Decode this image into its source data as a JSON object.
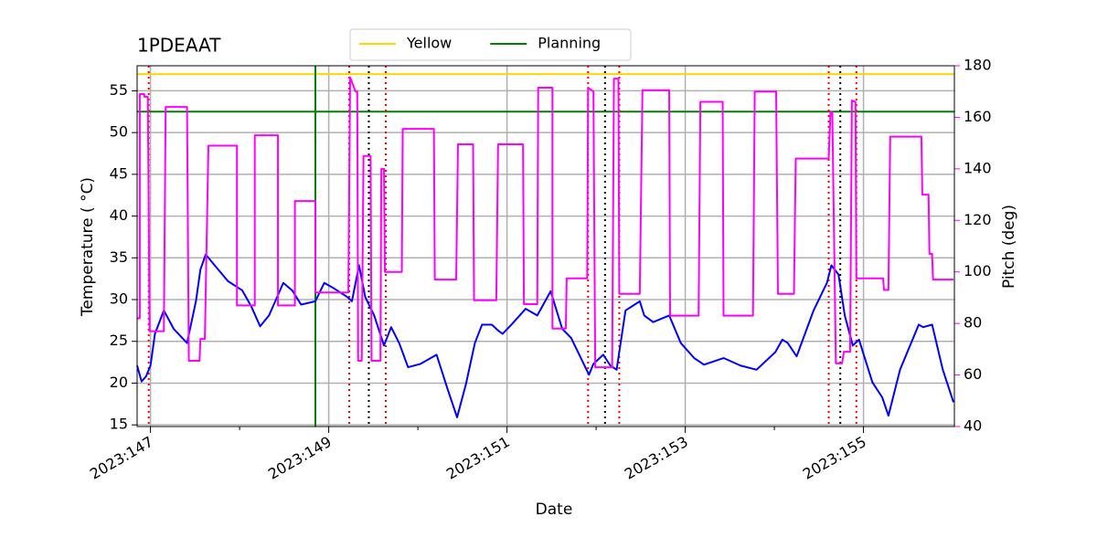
{
  "chart_data": {
    "type": "line",
    "title": "1PDEAAT",
    "xlabel": "Date",
    "ylabel": "Temperature ($^\\circ$C)",
    "y2label": "Pitch (deg)",
    "xlim": [
      146.85,
      156.02
    ],
    "xticks": [
      {
        "value": 147,
        "label": "2023:147"
      },
      {
        "value": 149,
        "label": "2023:149"
      },
      {
        "value": 151,
        "label": "2023:151"
      },
      {
        "value": 153,
        "label": "2023:153"
      },
      {
        "value": 155,
        "label": "2023:155"
      }
    ],
    "xminorticks": [
      148,
      150,
      152,
      154
    ],
    "ylim": [
      14.8,
      58
    ],
    "yticks": [
      15,
      20,
      25,
      30,
      35,
      40,
      45,
      50,
      55
    ],
    "y2lim": [
      40,
      180
    ],
    "y2ticks": [
      40,
      60,
      80,
      100,
      120,
      140,
      160,
      180
    ],
    "y2color": "magenta",
    "grid": true,
    "legend": "top",
    "hlines": [
      {
        "name": "Yellow",
        "color": "gold",
        "y": 57
      },
      {
        "name": "Planning",
        "color": "green",
        "y": 52.5
      }
    ],
    "vlines": [
      {
        "x": 148.85,
        "color": "green",
        "style": "solid"
      },
      {
        "x": 146.98,
        "color": "red",
        "style": "dotted"
      },
      {
        "x": 149.23,
        "color": "red",
        "style": "dotted"
      },
      {
        "x": 149.64,
        "color": "red",
        "style": "dotted"
      },
      {
        "x": 151.91,
        "color": "red",
        "style": "dotted"
      },
      {
        "x": 152.26,
        "color": "red",
        "style": "dotted"
      },
      {
        "x": 154.61,
        "color": "red",
        "style": "dotted"
      },
      {
        "x": 154.92,
        "color": "red",
        "style": "dotted"
      },
      {
        "x": 149.45,
        "color": "black",
        "style": "dotted"
      },
      {
        "x": 152.1,
        "color": "black",
        "style": "dotted"
      },
      {
        "x": 154.74,
        "color": "black",
        "style": "dotted"
      }
    ],
    "series": [
      {
        "color": "blue",
        "x": [
          146.85,
          146.9,
          146.95,
          147.0,
          147.05,
          147.15,
          147.26,
          147.41,
          147.51,
          147.56,
          147.62,
          147.72,
          147.87,
          148.03,
          148.13,
          148.23,
          148.33,
          148.49,
          148.59,
          148.69,
          148.85,
          148.95,
          149.05,
          149.21,
          149.26,
          149.34,
          149.41,
          149.51,
          149.62,
          149.7,
          149.79,
          149.89,
          150.03,
          150.21,
          150.33,
          150.44,
          150.54,
          150.64,
          150.72,
          150.83,
          150.9,
          150.95,
          151.05,
          151.21,
          151.34,
          151.49,
          151.62,
          151.72,
          151.92,
          151.97,
          152.08,
          152.16,
          152.23,
          152.33,
          152.49,
          152.54,
          152.64,
          152.82,
          152.95,
          153.1,
          153.21,
          153.43,
          153.62,
          153.8,
          154.01,
          154.09,
          154.15,
          154.25,
          154.44,
          154.59,
          154.64,
          154.72,
          154.79,
          154.88,
          154.95,
          155.1,
          155.21,
          155.28,
          155.41,
          155.62,
          155.67,
          155.77,
          155.89,
          156.01
        ],
        "values": [
          22.1,
          20.2,
          20.8,
          22.1,
          25.9,
          28.7,
          26.5,
          24.8,
          29.8,
          33.6,
          35.4,
          34.1,
          32.2,
          31.1,
          29.2,
          26.8,
          28.1,
          32.0,
          31.1,
          29.4,
          29.8,
          32.0,
          31.4,
          30.3,
          29.8,
          34.1,
          30.3,
          28.1,
          24.5,
          26.7,
          24.8,
          21.9,
          22.3,
          23.4,
          19.4,
          15.9,
          19.9,
          24.8,
          27.0,
          27.0,
          26.3,
          25.9,
          27.0,
          28.9,
          28.1,
          31.0,
          26.5,
          25.4,
          21.0,
          22.3,
          23.4,
          22.1,
          21.6,
          28.7,
          29.8,
          28.1,
          27.3,
          28.1,
          24.8,
          23.0,
          22.2,
          23.0,
          22.1,
          21.6,
          23.7,
          25.2,
          24.8,
          23.2,
          28.7,
          32.0,
          34.1,
          33.0,
          28.1,
          24.5,
          25.2,
          20.1,
          18.3,
          16.1,
          21.6,
          27.0,
          26.7,
          27.0,
          21.6,
          17.7
        ]
      },
      {
        "color": "magenta",
        "axis": "y2",
        "x": [
          146.85,
          146.88,
          146.88,
          146.93,
          146.93,
          146.97,
          146.99,
          147.15,
          147.17,
          147.41,
          147.43,
          147.55,
          147.56,
          147.61,
          147.65,
          147.97,
          147.97,
          148.17,
          148.17,
          148.43,
          148.43,
          148.62,
          148.62,
          148.85,
          148.85,
          149.22,
          149.24,
          149.3,
          149.32,
          149.33,
          149.37,
          149.39,
          149.47,
          149.48,
          149.58,
          149.59,
          149.62,
          149.63,
          149.82,
          149.83,
          150.18,
          150.19,
          150.43,
          150.45,
          150.62,
          150.63,
          150.88,
          150.9,
          151.18,
          151.19,
          151.34,
          151.35,
          151.51,
          151.51,
          151.66,
          151.67,
          151.9,
          151.91,
          151.97,
          151.99,
          152.18,
          152.2,
          152.25,
          152.26,
          152.49,
          152.52,
          152.82,
          152.83,
          153.15,
          153.17,
          153.42,
          153.43,
          153.76,
          153.78,
          154.02,
          154.04,
          154.22,
          154.24,
          154.61,
          154.63,
          154.65,
          154.69,
          154.76,
          154.78,
          154.85,
          154.87,
          154.91,
          154.92,
          155.22,
          155.23,
          155.28,
          155.3,
          155.65,
          155.66,
          155.73,
          155.74,
          155.77,
          155.78,
          156.01
        ],
        "values": [
          82,
          82,
          169,
          169,
          168,
          168,
          77,
          77,
          164,
          164,
          65.5,
          65.5,
          74,
          74,
          149,
          149,
          87,
          87,
          153,
          153,
          87,
          87,
          127.5,
          127.5,
          92,
          92,
          175.5,
          170,
          170,
          65.5,
          65.5,
          145,
          145,
          65.5,
          65.5,
          140,
          140,
          100,
          100,
          155.5,
          155.5,
          97,
          97,
          149.5,
          149.5,
          89,
          89,
          149.5,
          149.5,
          87.5,
          87.5,
          171.5,
          171.5,
          78,
          78,
          97.5,
          97.5,
          171.5,
          170,
          63,
          63,
          175,
          175,
          91.5,
          91.5,
          170.5,
          170.5,
          83,
          83,
          166,
          166,
          83,
          83,
          170,
          170,
          91.5,
          91.5,
          144,
          144,
          162,
          162,
          64.5,
          64.5,
          69,
          69,
          166.5,
          166,
          97.5,
          97.5,
          93,
          93,
          152.5,
          152.5,
          130,
          130,
          107,
          107,
          97,
          97
        ]
      }
    ]
  }
}
